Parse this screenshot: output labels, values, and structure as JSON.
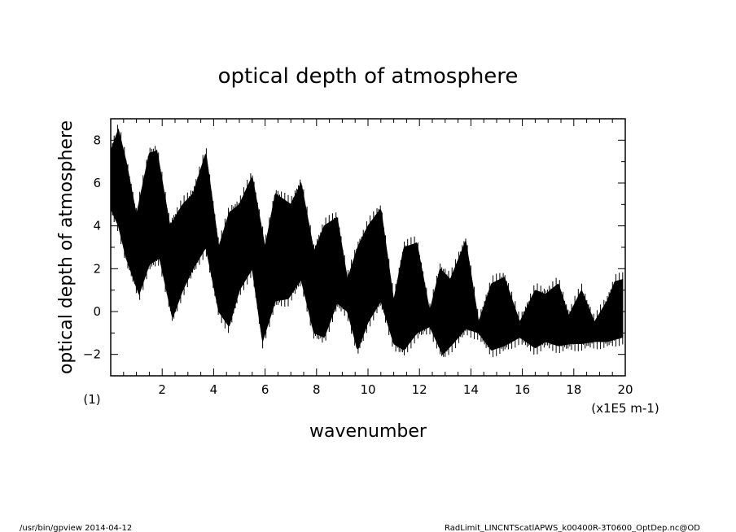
{
  "chart_data": {
    "type": "line",
    "title": "optical depth of atmosphere",
    "xlabel": "wavenumber",
    "ylabel": "optical depth of atmosphere",
    "x_unit": "(x1E5 m-1)",
    "y_unit": "(1)",
    "xlim": [
      0,
      20
    ],
    "ylim": [
      -3,
      9
    ],
    "xticks": [
      2,
      4,
      6,
      8,
      10,
      12,
      14,
      16,
      18,
      20
    ],
    "yticks": [
      -2,
      0,
      2,
      4,
      6,
      8
    ],
    "grid": false,
    "series": [
      {
        "upper": {
          "x": [
            0.0,
            0.3,
            0.6,
            1.0,
            1.5,
            1.8,
            2.3,
            2.8,
            3.2,
            3.7,
            4.2,
            4.6,
            5.0,
            5.5,
            6.0,
            6.4,
            7.0,
            7.4,
            7.9,
            8.3,
            8.8,
            9.2,
            9.6,
            10.0,
            10.5,
            11.0,
            11.4,
            11.9,
            12.4,
            12.8,
            13.2,
            13.8,
            14.3,
            14.8,
            15.3,
            15.9,
            16.5,
            16.9,
            17.4,
            17.8,
            18.3,
            18.8,
            19.3,
            19.6,
            19.9
          ],
          "y": [
            7.5,
            8.5,
            7.0,
            4.5,
            7.4,
            7.5,
            4.0,
            5.0,
            5.5,
            7.4,
            3.0,
            4.6,
            5.0,
            6.3,
            3.0,
            5.5,
            5.0,
            6.0,
            2.8,
            4.0,
            4.4,
            1.5,
            3.0,
            4.0,
            4.8,
            0.5,
            3.0,
            3.2,
            0.0,
            2.0,
            1.5,
            3.3,
            -0.5,
            1.3,
            1.6,
            -0.5,
            1.0,
            0.8,
            1.3,
            -0.2,
            1.0,
            -0.5,
            0.5,
            1.4,
            1.5
          ]
        },
        "lower": {
          "x": [
            0.0,
            0.3,
            0.6,
            1.1,
            1.5,
            1.9,
            2.4,
            2.8,
            3.2,
            3.7,
            4.2,
            4.6,
            5.0,
            5.5,
            5.9,
            6.4,
            6.9,
            7.4,
            7.9,
            8.3,
            8.8,
            9.2,
            9.6,
            10.0,
            10.5,
            11.0,
            11.4,
            11.9,
            12.4,
            12.9,
            13.3,
            13.8,
            14.3,
            14.8,
            15.3,
            15.9,
            16.5,
            16.9,
            17.4,
            17.9,
            18.3,
            18.8,
            19.3,
            19.6,
            19.9
          ],
          "y": [
            4.8,
            4.0,
            2.5,
            0.8,
            2.2,
            2.5,
            -0.3,
            1.0,
            2.0,
            3.0,
            0.0,
            -0.7,
            1.0,
            2.0,
            -1.4,
            0.5,
            0.6,
            1.5,
            -1.0,
            -1.2,
            0.4,
            0.0,
            -1.8,
            -0.5,
            0.5,
            -1.5,
            -1.8,
            -1.0,
            -0.7,
            -2.0,
            -1.5,
            -0.8,
            -1.0,
            -1.8,
            -1.6,
            -1.2,
            -1.7,
            -1.4,
            -1.6,
            -1.5,
            -1.5,
            -1.4,
            -1.4,
            -1.3,
            -1.2
          ]
        }
      }
    ]
  },
  "footer": {
    "left": "/usr/bin/gpview   2014-04-12",
    "right": "RadLimit_LINCNTScatlAPWS_k00400R-3T0600_OptDep.nc@OD"
  }
}
